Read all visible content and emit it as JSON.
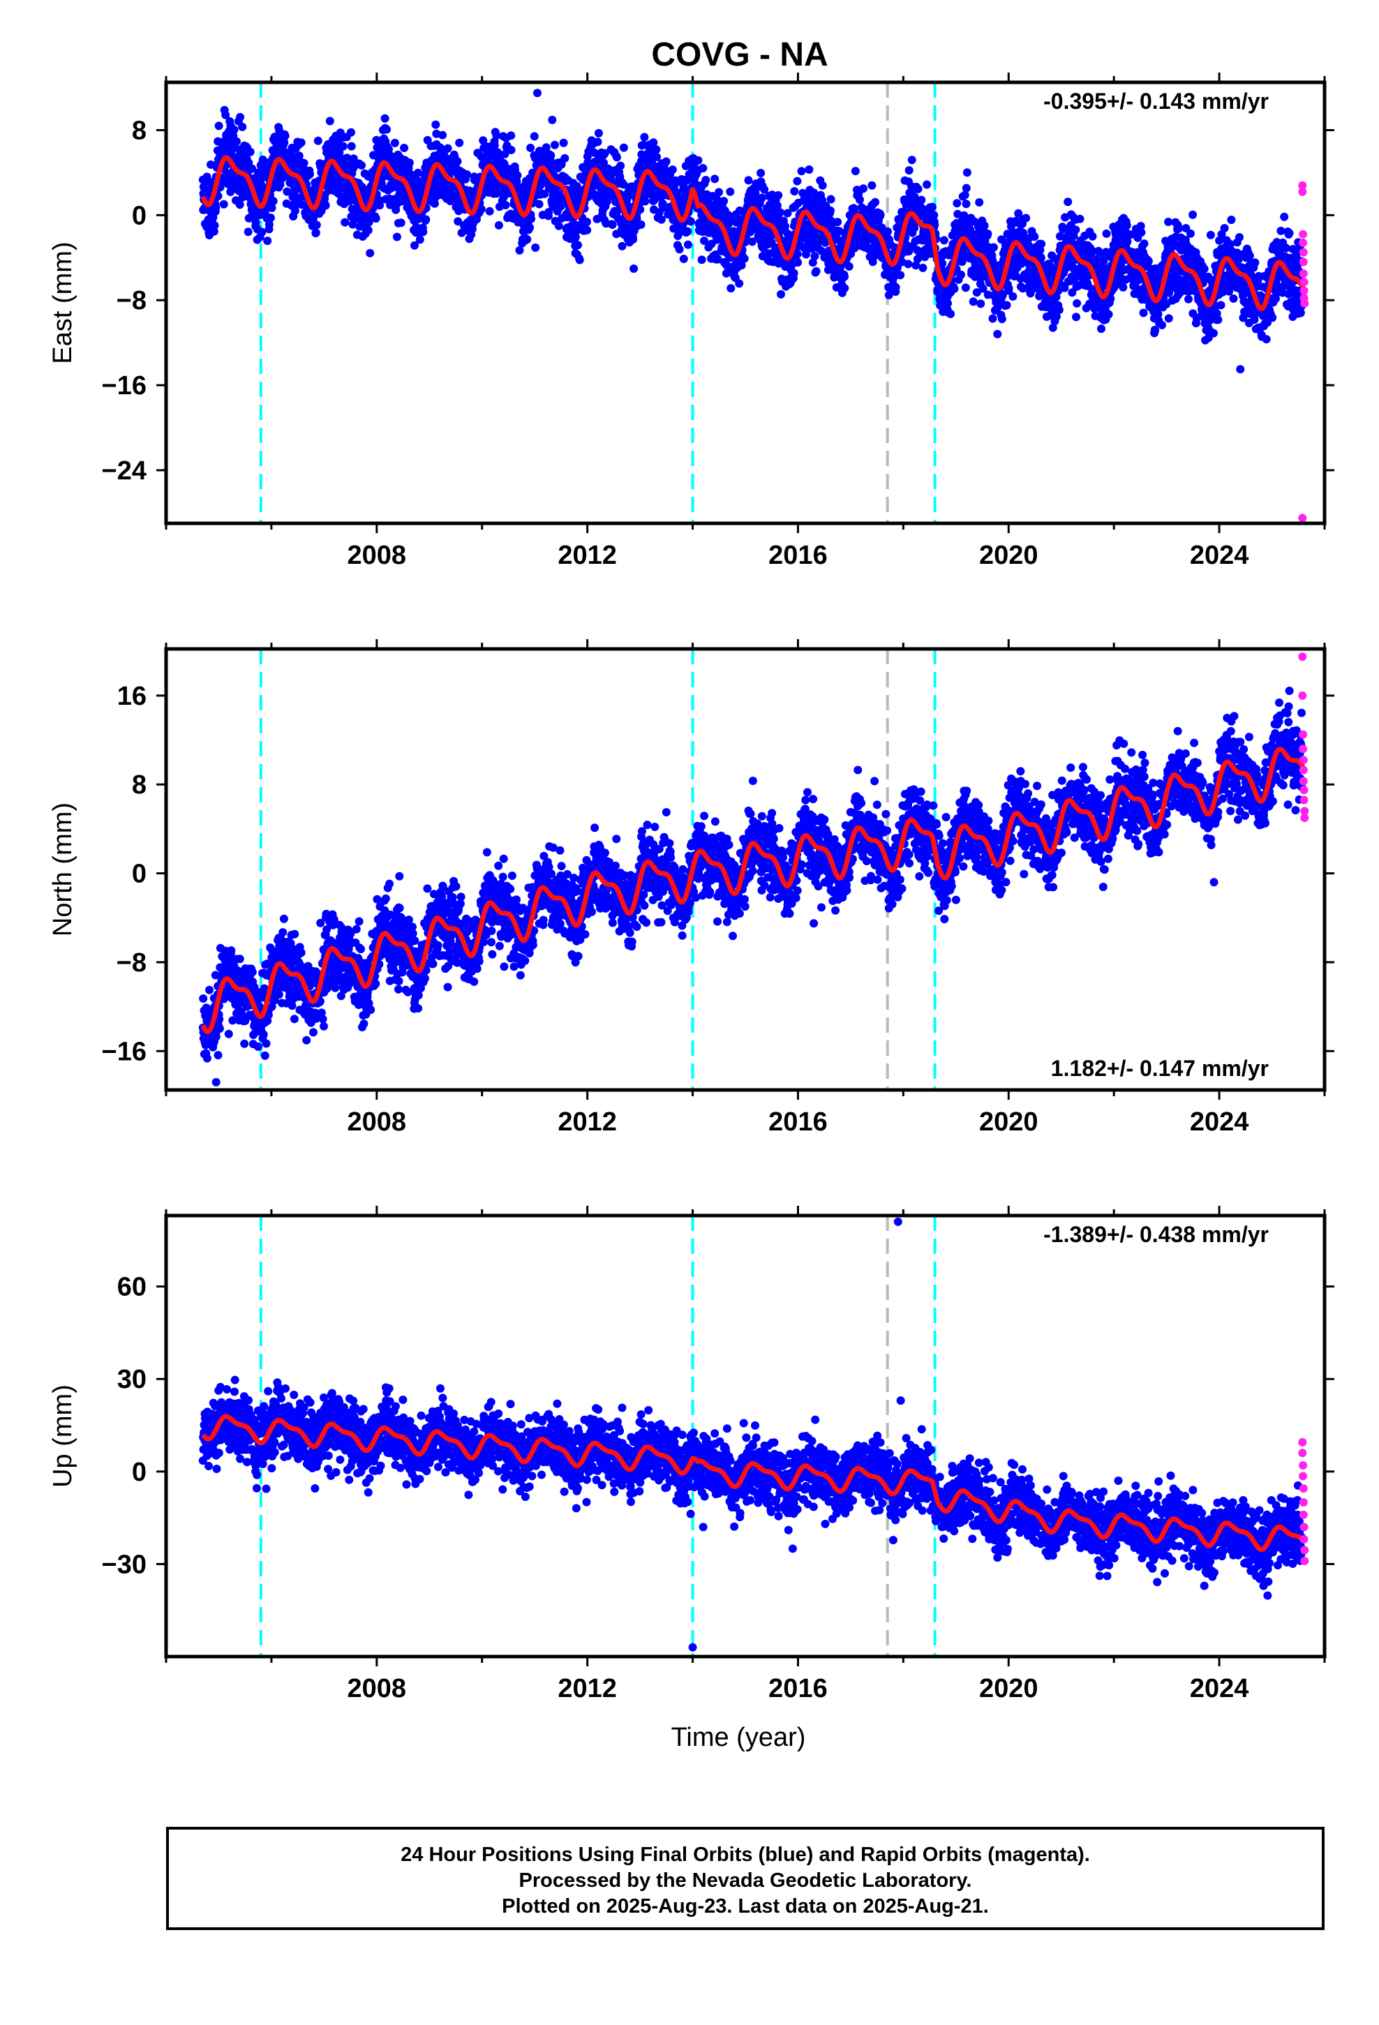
{
  "title": "COVG - NA",
  "xlabel": "Time (year)",
  "caption": {
    "line1": "24 Hour Positions Using Final Orbits (blue) and Rapid Orbits (magenta).",
    "line2": "Processed by the Nevada Geodetic Laboratory.",
    "line3": "Plotted on 2025-Aug-23. Last data on 2025-Aug-21."
  },
  "colors": {
    "final": "#0000ff",
    "rapid": "#ff22ee",
    "model": "#ff1111",
    "event_cyan": "#00ffff",
    "event_gray": "#bbbbbb"
  },
  "chart_data": [
    {
      "type": "scatter",
      "component": "East",
      "ylabel": "East (mm)",
      "xlim": [
        2004.0,
        2026.0
      ],
      "ylim": [
        -29,
        12.5
      ],
      "xticks": [
        2008,
        2012,
        2016,
        2020,
        2024
      ],
      "yticks": [
        8,
        0,
        -8,
        -16,
        -24
      ],
      "velocity_label": "-0.395+/- 0.143 mm/yr",
      "label_pos": "top-right",
      "events_cyan": [
        2005.8,
        2014.0,
        2018.6
      ],
      "events_gray": [
        2017.7
      ],
      "series": [
        {
          "name": "Final Orbits",
          "color": "blue",
          "trend": [
            [
              2004.7,
              3.5
            ],
            [
              2014.0,
              2.0
            ],
            [
              2014.1,
              -1.0
            ],
            [
              2017.7,
              -2.2
            ],
            [
              2018.55,
              -1.5
            ],
            [
              2018.65,
              -4.0
            ],
            [
              2025.6,
              -6.6
            ]
          ],
          "seasonal_amp": 2.2,
          "scatter": 1.7
        },
        {
          "name": "Rapid Orbits",
          "color": "magenta",
          "points": [
            [
              2025.58,
              2.8
            ],
            [
              2025.58,
              2.2
            ],
            [
              2025.59,
              -1.8
            ],
            [
              2025.59,
              -2.6
            ],
            [
              2025.6,
              -3.5
            ],
            [
              2025.6,
              -4.4
            ],
            [
              2025.6,
              -5.5
            ],
            [
              2025.61,
              -6.3
            ],
            [
              2025.61,
              -7.1
            ],
            [
              2025.61,
              -7.8
            ],
            [
              2025.62,
              -8.3
            ],
            [
              2025.58,
              -28.5
            ]
          ]
        },
        {
          "name": "Model",
          "color": "red",
          "trend": [
            [
              2004.7,
              3.5
            ],
            [
              2014.0,
              2.0
            ],
            [
              2014.1,
              -1.0
            ],
            [
              2017.7,
              -2.2
            ],
            [
              2018.55,
              -1.5
            ],
            [
              2018.65,
              -4.0
            ],
            [
              2025.6,
              -6.6
            ]
          ],
          "seasonal_amp": 2.2
        }
      ],
      "outliers": [
        [
          2011.05,
          11.5
        ],
        [
          2024.4,
          -14.5
        ],
        [
          2018.7,
          -8.5
        ]
      ]
    },
    {
      "type": "scatter",
      "component": "North",
      "ylabel": "North (mm)",
      "xlim": [
        2004.0,
        2026.0
      ],
      "ylim": [
        -19.5,
        20.2
      ],
      "xticks": [
        2008,
        2012,
        2016,
        2020,
        2024
      ],
      "yticks": [
        16,
        8,
        0,
        -8,
        -16
      ],
      "velocity_label": "1.182+/- 0.147 mm/yr",
      "label_pos": "bottom-right",
      "events_cyan": [
        2005.8,
        2014.0,
        2018.6
      ],
      "events_gray": [
        2017.7
      ],
      "series": [
        {
          "name": "Final Orbits",
          "color": "blue",
          "trend": [
            [
              2004.7,
              -12.0
            ],
            [
              2008.0,
              -7.5
            ],
            [
              2012.0,
              -2.0
            ],
            [
              2014.0,
              0.0
            ],
            [
              2018.55,
              3.2
            ],
            [
              2018.65,
              1.8
            ],
            [
              2021.0,
              4.5
            ],
            [
              2025.6,
              9.8
            ]
          ],
          "seasonal_amp": 2.1,
          "scatter": 1.6
        },
        {
          "name": "Rapid Orbits",
          "color": "magenta",
          "points": [
            [
              2025.58,
              19.5
            ],
            [
              2025.58,
              16.0
            ],
            [
              2025.59,
              12.5
            ],
            [
              2025.59,
              11.2
            ],
            [
              2025.6,
              10.2
            ],
            [
              2025.6,
              9.3
            ],
            [
              2025.6,
              8.3
            ],
            [
              2025.61,
              7.5
            ],
            [
              2025.61,
              6.6
            ],
            [
              2025.62,
              5.6
            ],
            [
              2025.62,
              5.0
            ]
          ]
        },
        {
          "name": "Model",
          "color": "red",
          "trend": [
            [
              2004.7,
              -12.0
            ],
            [
              2008.0,
              -7.5
            ],
            [
              2012.0,
              -2.0
            ],
            [
              2014.0,
              0.0
            ],
            [
              2018.55,
              3.2
            ],
            [
              2018.65,
              1.8
            ],
            [
              2021.0,
              4.5
            ],
            [
              2025.6,
              9.8
            ]
          ],
          "seasonal_amp": 2.1
        }
      ],
      "outliers": [
        [
          2004.95,
          -18.8
        ],
        [
          2013.5,
          5.5
        ],
        [
          2023.9,
          -0.8
        ],
        [
          2016.3,
          -4.5
        ]
      ]
    },
    {
      "type": "scatter",
      "component": "Up",
      "ylabel": "Up (mm)",
      "xlim": [
        2004.0,
        2026.0
      ],
      "ylim": [
        -60,
        83
      ],
      "xticks": [
        2008,
        2012,
        2016,
        2020,
        2024
      ],
      "yticks": [
        60,
        30,
        0,
        -30
      ],
      "velocity_label": "-1.389+/- 0.438 mm/yr",
      "label_pos": "top-right",
      "events_cyan": [
        2005.8,
        2014.0,
        2018.6
      ],
      "events_gray": [
        2017.7
      ],
      "series": [
        {
          "name": "Final Orbits",
          "color": "blue",
          "trend": [
            [
              2004.7,
              15.0
            ],
            [
              2014.0,
              3.5
            ],
            [
              2014.1,
              0.0
            ],
            [
              2018.55,
              -3.5
            ],
            [
              2018.65,
              -8.0
            ],
            [
              2021.0,
              -16.0
            ],
            [
              2025.6,
              -22.0
            ]
          ],
          "seasonal_amp": 3.8,
          "scatter": 5.0
        },
        {
          "name": "Rapid Orbits",
          "color": "magenta",
          "points": [
            [
              2025.58,
              9.5
            ],
            [
              2025.58,
              6.0
            ],
            [
              2025.59,
              2.0
            ],
            [
              2025.59,
              -1.5
            ],
            [
              2025.6,
              -5.5
            ],
            [
              2025.6,
              -10.0
            ],
            [
              2025.6,
              -14.0
            ],
            [
              2025.61,
              -18.0
            ],
            [
              2025.61,
              -22.0
            ],
            [
              2025.62,
              -25.5
            ],
            [
              2025.62,
              -29.0
            ]
          ]
        },
        {
          "name": "Model",
          "color": "red",
          "trend": [
            [
              2004.7,
              15.0
            ],
            [
              2014.0,
              3.5
            ],
            [
              2014.1,
              0.0
            ],
            [
              2018.55,
              -3.5
            ],
            [
              2018.65,
              -8.0
            ],
            [
              2021.0,
              -16.0
            ],
            [
              2025.6,
              -22.0
            ]
          ],
          "seasonal_amp": 3.8
        }
      ],
      "outliers": [
        [
          2017.9,
          81.0
        ],
        [
          2014.0,
          -57.0
        ],
        [
          2017.95,
          23.0
        ],
        [
          2014.2,
          -18.0
        ],
        [
          2015.9,
          -25.0
        ]
      ]
    }
  ]
}
